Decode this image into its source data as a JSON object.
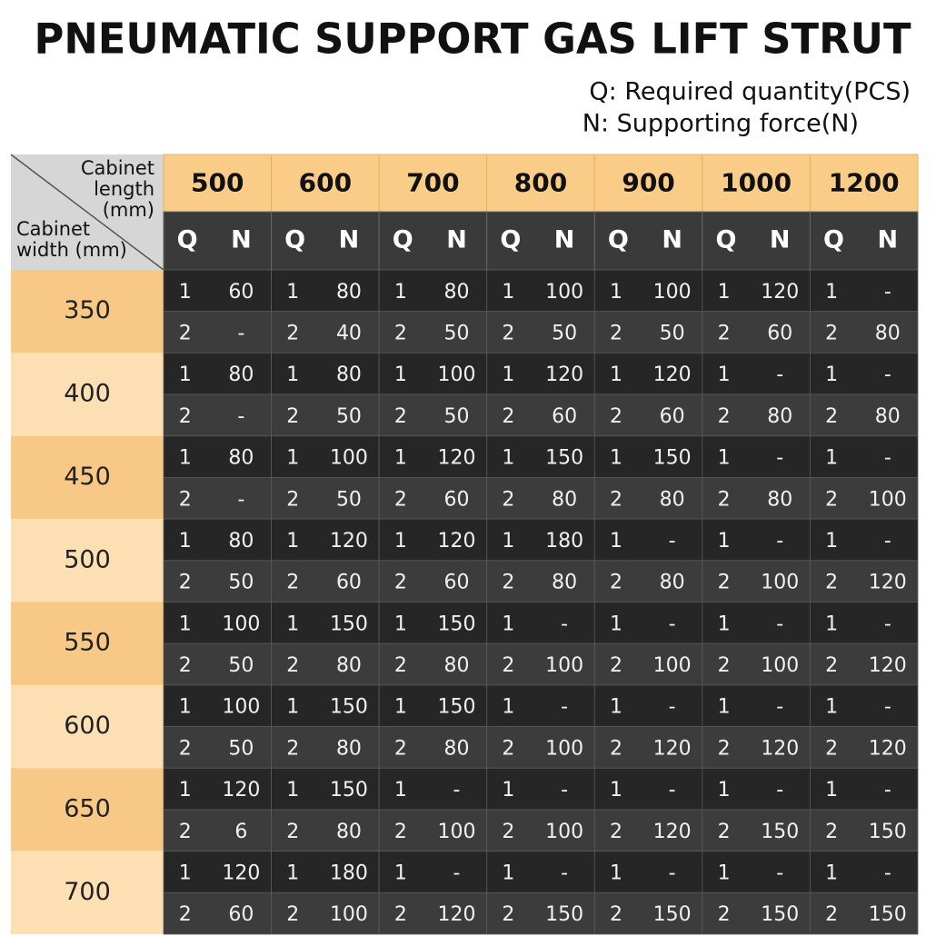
{
  "header": {
    "title": "PNEUMATIC SUPPORT GAS LIFT STRUT",
    "legend": [
      "Q: Required quantity(PCS)",
      "N: Supporting force(N)"
    ]
  },
  "table": {
    "corner": {
      "length_label": [
        "Cabinet",
        "length",
        "(mm)"
      ],
      "width_label": [
        "Cabinet",
        "width (mm)"
      ]
    },
    "columns": [
      {
        "length": 500,
        "q": "Q",
        "n": "N"
      },
      {
        "length": 600,
        "q": "Q",
        "n": "N"
      },
      {
        "length": 700,
        "q": "Q",
        "n": "N"
      },
      {
        "length": 800,
        "q": "Q",
        "n": "N"
      },
      {
        "length": 900,
        "q": "Q",
        "n": "N"
      },
      {
        "length": 1000,
        "q": "Q",
        "n": "N"
      },
      {
        "length": 1200,
        "q": "Q",
        "n": "N"
      }
    ],
    "rows": [
      {
        "width": 350,
        "lines": [
          [
            1,
            60,
            1,
            80,
            1,
            80,
            1,
            100,
            1,
            100,
            1,
            120,
            1,
            "-"
          ],
          [
            2,
            "-",
            2,
            40,
            2,
            50,
            2,
            50,
            2,
            50,
            2,
            60,
            2,
            80
          ]
        ]
      },
      {
        "width": 400,
        "lines": [
          [
            1,
            80,
            1,
            80,
            1,
            100,
            1,
            120,
            1,
            120,
            1,
            "-",
            1,
            "-"
          ],
          [
            2,
            "-",
            2,
            50,
            2,
            50,
            2,
            60,
            2,
            60,
            2,
            80,
            2,
            80
          ]
        ]
      },
      {
        "width": 450,
        "lines": [
          [
            1,
            80,
            1,
            100,
            1,
            120,
            1,
            150,
            1,
            150,
            1,
            "-",
            1,
            "-"
          ],
          [
            2,
            "-",
            2,
            50,
            2,
            60,
            2,
            80,
            2,
            80,
            2,
            80,
            2,
            100
          ]
        ]
      },
      {
        "width": 500,
        "lines": [
          [
            1,
            80,
            1,
            120,
            1,
            120,
            1,
            180,
            1,
            "-",
            1,
            "-",
            1,
            "-"
          ],
          [
            2,
            50,
            2,
            60,
            2,
            60,
            2,
            80,
            2,
            80,
            2,
            100,
            2,
            120
          ]
        ]
      },
      {
        "width": 550,
        "lines": [
          [
            1,
            100,
            1,
            150,
            1,
            150,
            1,
            "-",
            1,
            "-",
            1,
            "-",
            1,
            "-"
          ],
          [
            2,
            50,
            2,
            80,
            2,
            80,
            2,
            100,
            2,
            100,
            2,
            100,
            2,
            120
          ]
        ]
      },
      {
        "width": 600,
        "lines": [
          [
            1,
            100,
            1,
            150,
            1,
            150,
            1,
            "-",
            1,
            "-",
            1,
            "-",
            1,
            "-"
          ],
          [
            2,
            50,
            2,
            80,
            2,
            80,
            2,
            100,
            2,
            120,
            2,
            120,
            2,
            120
          ]
        ]
      },
      {
        "width": 650,
        "lines": [
          [
            1,
            120,
            1,
            150,
            1,
            "-",
            1,
            "-",
            1,
            "-",
            1,
            "-",
            1,
            "-"
          ],
          [
            2,
            6,
            2,
            80,
            2,
            100,
            2,
            100,
            2,
            120,
            2,
            150,
            2,
            150
          ]
        ]
      },
      {
        "width": 700,
        "lines": [
          [
            1,
            120,
            1,
            180,
            1,
            "-",
            1,
            "-",
            1,
            "-",
            1,
            "-",
            1,
            "-"
          ],
          [
            2,
            60,
            2,
            100,
            2,
            120,
            2,
            150,
            2,
            150,
            2,
            150,
            2,
            150
          ]
        ]
      }
    ]
  }
}
